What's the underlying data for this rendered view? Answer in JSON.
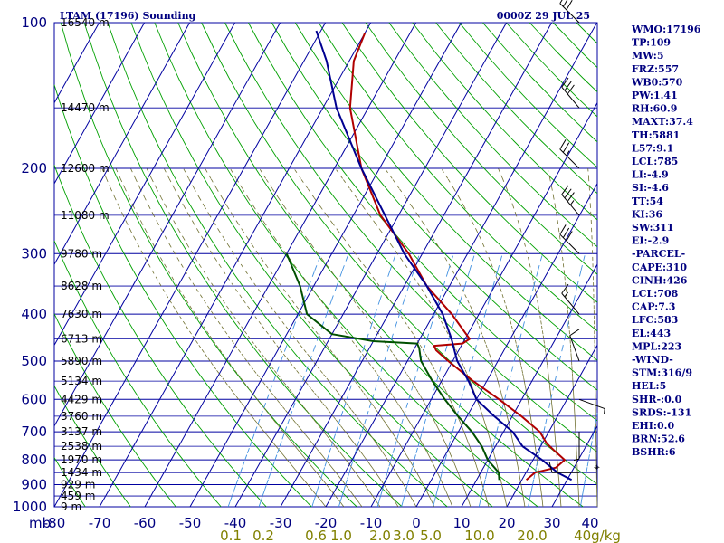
{
  "header": {
    "title": "LTAM (17196) Sounding",
    "datetime": "0000Z 29 JUL 25"
  },
  "chart_data": {
    "type": "line",
    "pressure_levels": [
      100,
      200,
      300,
      400,
      500,
      600,
      700,
      800,
      900,
      1000
    ],
    "pressure_axis_label": "mb",
    "height_labels": [
      {
        "p": 100,
        "text": "16540 m"
      },
      {
        "p": 150,
        "text": "14470 m"
      },
      {
        "p": 200,
        "text": "12600 m"
      },
      {
        "p": 250,
        "text": "11080 m"
      },
      {
        "p": 300,
        "text": "9780 m"
      },
      {
        "p": 350,
        "text": "8628 m"
      },
      {
        "p": 400,
        "text": "7630 m"
      },
      {
        "p": 450,
        "text": "6713 m"
      },
      {
        "p": 500,
        "text": "5890 m"
      },
      {
        "p": 550,
        "text": "5134 m"
      },
      {
        "p": 600,
        "text": "4429 m"
      },
      {
        "p": 650,
        "text": "3760 m"
      },
      {
        "p": 700,
        "text": "3137 m"
      },
      {
        "p": 750,
        "text": "2538 m"
      },
      {
        "p": 800,
        "text": "1970 m"
      },
      {
        "p": 850,
        "text": "1434 m"
      },
      {
        "p": 900,
        "text": "929 m"
      },
      {
        "p": 950,
        "text": "459 m"
      },
      {
        "p": 1000,
        "text": "9 m"
      }
    ],
    "temperature_ticks": [
      "-80",
      "-70",
      "-60",
      "-50",
      "-40",
      "-30",
      "-20",
      "-10",
      "0",
      "10",
      "20",
      "30",
      "40"
    ],
    "mixing_ratio_labels": [
      "0.1",
      "0.2",
      "0.6",
      "1.0",
      "2.0",
      "3.0",
      "5.0",
      "10.0",
      "20.0",
      "40g/kg"
    ],
    "mixing_ratio_values": [
      0.1,
      0.2,
      0.6,
      1.0,
      2.0,
      3.0,
      5.0,
      10.0,
      20.0,
      40.0
    ],
    "series": [
      {
        "role": "temperature",
        "color": "#b00000",
        "points": [
          [
            880,
            21
          ],
          [
            850,
            22
          ],
          [
            830,
            26
          ],
          [
            800,
            27
          ],
          [
            770,
            24
          ],
          [
            740,
            21
          ],
          [
            700,
            18
          ],
          [
            650,
            12
          ],
          [
            600,
            5
          ],
          [
            550,
            -3
          ],
          [
            500,
            -11
          ],
          [
            475,
            -15
          ],
          [
            465,
            -16
          ],
          [
            460,
            -10
          ],
          [
            450,
            -9
          ],
          [
            400,
            -16
          ],
          [
            350,
            -25
          ],
          [
            300,
            -33
          ],
          [
            250,
            -44
          ],
          [
            200,
            -54
          ],
          [
            150,
            -64
          ],
          [
            120,
            -69
          ],
          [
            105,
            -70
          ]
        ]
      },
      {
        "role": "dewpoint",
        "color": "#005000",
        "points": [
          [
            880,
            15
          ],
          [
            850,
            14
          ],
          [
            800,
            10
          ],
          [
            750,
            7
          ],
          [
            700,
            3
          ],
          [
            650,
            -2
          ],
          [
            600,
            -7
          ],
          [
            550,
            -12
          ],
          [
            500,
            -17
          ],
          [
            470,
            -19
          ],
          [
            460,
            -20
          ],
          [
            455,
            -30
          ],
          [
            440,
            -40
          ],
          [
            400,
            -48
          ],
          [
            350,
            -53
          ],
          [
            300,
            -60
          ]
        ]
      },
      {
        "role": "parcel",
        "color": "#000090",
        "points": [
          [
            880,
            31
          ],
          [
            850,
            27
          ],
          [
            800,
            22
          ],
          [
            750,
            16
          ],
          [
            700,
            12
          ],
          [
            650,
            6
          ],
          [
            600,
            0
          ],
          [
            550,
            -4
          ],
          [
            500,
            -9
          ],
          [
            450,
            -13
          ],
          [
            400,
            -18
          ],
          [
            350,
            -25
          ],
          [
            300,
            -34
          ],
          [
            250,
            -43
          ],
          [
            200,
            -54
          ],
          [
            150,
            -67
          ],
          [
            120,
            -75
          ],
          [
            104,
            -81
          ]
        ]
      }
    ],
    "wind_barbs": [
      {
        "p": 100,
        "dir": 315,
        "kt": 30
      },
      {
        "p": 150,
        "dir": 320,
        "kt": 30
      },
      {
        "p": 200,
        "dir": 315,
        "kt": 25
      },
      {
        "p": 250,
        "dir": 320,
        "kt": 35
      },
      {
        "p": 300,
        "dir": 315,
        "kt": 30
      },
      {
        "p": 400,
        "dir": 320,
        "kt": 15
      },
      {
        "p": 500,
        "dir": 340,
        "kt": 10
      },
      {
        "p": 600,
        "dir": 110,
        "kt": 5
      },
      {
        "p": 700,
        "dir": 180,
        "kt": 5
      },
      {
        "p": 850,
        "dir": 270,
        "kt": 10
      }
    ],
    "colors": {
      "isobar": "#0000a0",
      "isotherm": "#0000a0",
      "dry_adiabat": "#00a000",
      "moist_adiabat": "#707030",
      "mixing_ratio": "#4090e0",
      "wind": "#000000"
    }
  },
  "indices": [
    "WMO:17196",
    "TP:109",
    "MW:5",
    "FRZ:557",
    "WB0:570",
    "PW:1.41",
    "RH:60.9",
    "MAXT:37.4",
    "TH:5881",
    "L57:9.1",
    "LCL:785",
    "LI:-4.9",
    "SI:-4.6",
    "TT:54",
    "KI:36",
    "SW:311",
    "EI:-2.9",
    "-PARCEL-",
    "CAPE:310",
    "CINH:426",
    "LCL:708",
    "CAP:7.3",
    "LFC:583",
    "EL:443",
    "MPL:223",
    "-WIND-",
    "STM:316/9",
    "HEL:5",
    "SHR-:0.0",
    "SRDS:-131",
    "EHI:0.0",
    "BRN:52.6",
    "BSHR:6"
  ]
}
